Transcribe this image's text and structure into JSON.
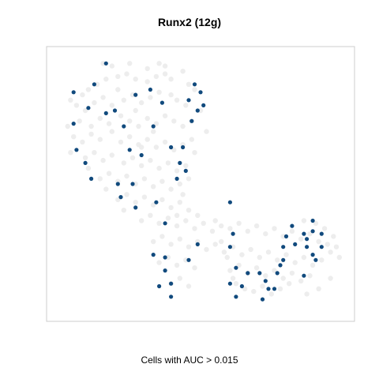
{
  "chart_data": {
    "type": "scatter",
    "title": "Runx2 (12g)",
    "xlabel": "Cells with AUC > 0.015",
    "ylabel": "",
    "xlim": [
      0,
      100
    ],
    "ylim": [
      0,
      100
    ],
    "axes_ticks": false,
    "grid": false,
    "legend": "none",
    "colors": {
      "background_cells": "#ebebeb",
      "active_cells": "#114a7d",
      "panel_border": "#cccccc"
    },
    "series": [
      {
        "role": "background",
        "points": [
          [
            10,
            84
          ],
          [
            12,
            86
          ],
          [
            15,
            88
          ],
          [
            18,
            90
          ],
          [
            22,
            91
          ],
          [
            25,
            92
          ],
          [
            28,
            90
          ],
          [
            32,
            89
          ],
          [
            35,
            91
          ],
          [
            38,
            92
          ],
          [
            8,
            80
          ],
          [
            11,
            78
          ],
          [
            14,
            81
          ],
          [
            17,
            83
          ],
          [
            20,
            80
          ],
          [
            24,
            82
          ],
          [
            27,
            84
          ],
          [
            30,
            81
          ],
          [
            33,
            83
          ],
          [
            36,
            85
          ],
          [
            40,
            84
          ],
          [
            42,
            82
          ],
          [
            45,
            80
          ],
          [
            9,
            74
          ],
          [
            13,
            72
          ],
          [
            16,
            75
          ],
          [
            19,
            73
          ],
          [
            23,
            76
          ],
          [
            26,
            74
          ],
          [
            29,
            72
          ],
          [
            32,
            75
          ],
          [
            35,
            73
          ],
          [
            38,
            76
          ],
          [
            41,
            74
          ],
          [
            44,
            72
          ],
          [
            47,
            74
          ],
          [
            7,
            68
          ],
          [
            10,
            66
          ],
          [
            13,
            69
          ],
          [
            16,
            67
          ],
          [
            20,
            70
          ],
          [
            23,
            66
          ],
          [
            26,
            68
          ],
          [
            29,
            65
          ],
          [
            32,
            67
          ],
          [
            35,
            64
          ],
          [
            38,
            66
          ],
          [
            41,
            63
          ],
          [
            44,
            65
          ],
          [
            47,
            67
          ],
          [
            11,
            60
          ],
          [
            14,
            62
          ],
          [
            17,
            59
          ],
          [
            20,
            61
          ],
          [
            24,
            58
          ],
          [
            27,
            60
          ],
          [
            30,
            57
          ],
          [
            33,
            59
          ],
          [
            36,
            56
          ],
          [
            39,
            58
          ],
          [
            42,
            55
          ],
          [
            45,
            57
          ],
          [
            16,
            52
          ],
          [
            19,
            54
          ],
          [
            22,
            51
          ],
          [
            25,
            53
          ],
          [
            28,
            50
          ],
          [
            31,
            52
          ],
          [
            34,
            49
          ],
          [
            37,
            51
          ],
          [
            40,
            48
          ],
          [
            43,
            50
          ],
          [
            22,
            44
          ],
          [
            25,
            46
          ],
          [
            28,
            43
          ],
          [
            31,
            45
          ],
          [
            34,
            42
          ],
          [
            37,
            44
          ],
          [
            40,
            41
          ],
          [
            43,
            43
          ],
          [
            46,
            40
          ],
          [
            49,
            38
          ],
          [
            30,
            36
          ],
          [
            33,
            38
          ],
          [
            36,
            35
          ],
          [
            39,
            37
          ],
          [
            42,
            34
          ],
          [
            45,
            36
          ],
          [
            48,
            33
          ],
          [
            51,
            35
          ],
          [
            54,
            32
          ],
          [
            57,
            34
          ],
          [
            60,
            33
          ],
          [
            63,
            35
          ],
          [
            66,
            32
          ],
          [
            69,
            34
          ],
          [
            72,
            31
          ],
          [
            75,
            33
          ],
          [
            78,
            30
          ],
          [
            81,
            32
          ],
          [
            84,
            29
          ],
          [
            87,
            31
          ],
          [
            90,
            28
          ],
          [
            93,
            27
          ],
          [
            96,
            26
          ],
          [
            34,
            28
          ],
          [
            37,
            30
          ],
          [
            40,
            27
          ],
          [
            43,
            29
          ],
          [
            46,
            26
          ],
          [
            49,
            28
          ],
          [
            52,
            25
          ],
          [
            55,
            27
          ],
          [
            58,
            24
          ],
          [
            61,
            26
          ],
          [
            64,
            23
          ],
          [
            67,
            25
          ],
          [
            70,
            22
          ],
          [
            73,
            24
          ],
          [
            76,
            21
          ],
          [
            79,
            23
          ],
          [
            82,
            20
          ],
          [
            85,
            22
          ],
          [
            88,
            19
          ],
          [
            91,
            21
          ],
          [
            94,
            24
          ],
          [
            36,
            20
          ],
          [
            39,
            22
          ],
          [
            42,
            19
          ],
          [
            45,
            21
          ],
          [
            48,
            18
          ],
          [
            60,
            17
          ],
          [
            63,
            19
          ],
          [
            66,
            16
          ],
          [
            69,
            18
          ],
          [
            72,
            15
          ],
          [
            75,
            17
          ],
          [
            78,
            14
          ],
          [
            81,
            16
          ],
          [
            84,
            13
          ],
          [
            87,
            15
          ],
          [
            40,
            12
          ],
          [
            43,
            14
          ],
          [
            46,
            11
          ],
          [
            62,
            12
          ],
          [
            65,
            10
          ],
          [
            68,
            9
          ],
          [
            71,
            11
          ],
          [
            74,
            8
          ],
          [
            77,
            10
          ],
          [
            80,
            12
          ],
          [
            20,
            95
          ],
          [
            26,
            96
          ],
          [
            32,
            94
          ],
          [
            38,
            95
          ],
          [
            44,
            93
          ],
          [
            48,
            86
          ],
          [
            50,
            78
          ],
          [
            52,
            70
          ],
          [
            48,
            62
          ],
          [
            46,
            52
          ],
          [
            44,
            46
          ],
          [
            42,
            38
          ],
          [
            24,
            40
          ],
          [
            18,
            48
          ],
          [
            12,
            56
          ],
          [
            6,
            62
          ],
          [
            5,
            72
          ],
          [
            6,
            82
          ],
          [
            57,
            28
          ],
          [
            59,
            22
          ],
          [
            61,
            14
          ],
          [
            55,
            36
          ],
          [
            85,
            36
          ],
          [
            89,
            35
          ],
          [
            92,
            33
          ],
          [
            95,
            30
          ],
          [
            97,
            22
          ],
          [
            94,
            14
          ],
          [
            90,
            10
          ],
          [
            86,
            8
          ],
          [
            30,
            64
          ],
          [
            34,
            70
          ],
          [
            22,
            86
          ],
          [
            28,
            78
          ],
          [
            40,
            90
          ],
          [
            46,
            88
          ],
          [
            17,
            96
          ],
          [
            36,
            96
          ]
        ]
      },
      {
        "role": "active",
        "points": [
          [
            18,
            96
          ],
          [
            14,
            88
          ],
          [
            7,
            85
          ],
          [
            12,
            79
          ],
          [
            7,
            73
          ],
          [
            18,
            77
          ],
          [
            8,
            63
          ],
          [
            11,
            58
          ],
          [
            13,
            52
          ],
          [
            21,
            78
          ],
          [
            24,
            72
          ],
          [
            26,
            63
          ],
          [
            30,
            61
          ],
          [
            22,
            50
          ],
          [
            23,
            45
          ],
          [
            28,
            41
          ],
          [
            35,
            43
          ],
          [
            38,
            35
          ],
          [
            27,
            50
          ],
          [
            33,
            86
          ],
          [
            28,
            84
          ],
          [
            37,
            81
          ],
          [
            34,
            72
          ],
          [
            40,
            64
          ],
          [
            43,
            58
          ],
          [
            42,
            52
          ],
          [
            45,
            55
          ],
          [
            48,
            88
          ],
          [
            50,
            85
          ],
          [
            46,
            82
          ],
          [
            51,
            80
          ],
          [
            49,
            78
          ],
          [
            47,
            74
          ],
          [
            44,
            64
          ],
          [
            34,
            23
          ],
          [
            38,
            22
          ],
          [
            38,
            17
          ],
          [
            36,
            11
          ],
          [
            40,
            12
          ],
          [
            49,
            27
          ],
          [
            40,
            7
          ],
          [
            46,
            21
          ],
          [
            60,
            43
          ],
          [
            61,
            31
          ],
          [
            60,
            26
          ],
          [
            62,
            18
          ],
          [
            64,
            11
          ],
          [
            60,
            12
          ],
          [
            62,
            7
          ],
          [
            66,
            16
          ],
          [
            70,
            16
          ],
          [
            72,
            13
          ],
          [
            73,
            10
          ],
          [
            76,
            16
          ],
          [
            77,
            19
          ],
          [
            78,
            21
          ],
          [
            78,
            26
          ],
          [
            79,
            30
          ],
          [
            82,
            27
          ],
          [
            81,
            34
          ],
          [
            85,
            31
          ],
          [
            86,
            29
          ],
          [
            88,
            32
          ],
          [
            86,
            26
          ],
          [
            88,
            23
          ],
          [
            89,
            21
          ],
          [
            85,
            15
          ],
          [
            88,
            36
          ],
          [
            91,
            31
          ],
          [
            91,
            26
          ],
          [
            75,
            10
          ],
          [
            71,
            6
          ]
        ]
      }
    ]
  }
}
